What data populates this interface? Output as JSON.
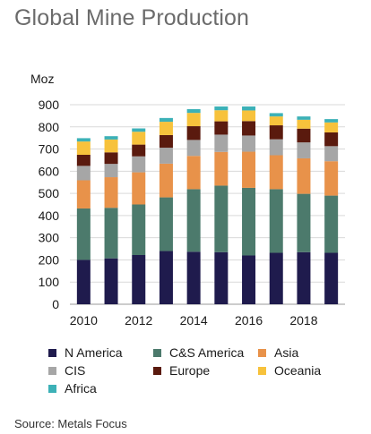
{
  "chart_data": {
    "type": "stacked-bar",
    "title": "Global Mine Production",
    "ylabel": "Moz",
    "ylim": [
      0,
      900
    ],
    "yticks": [
      0,
      100,
      200,
      300,
      400,
      500,
      600,
      700,
      800,
      900
    ],
    "categories": [
      "2010",
      "2011",
      "2012",
      "2013",
      "2014",
      "2015",
      "2016",
      "2017",
      "2018",
      "2019"
    ],
    "xtick_labels": [
      "2010",
      "2012",
      "2014",
      "2016",
      "2018"
    ],
    "grid": true,
    "legend_position": "bottom",
    "series": [
      {
        "name": "N America",
        "color": "#1f1b4d",
        "values": [
          200,
          207,
          222,
          240,
          237,
          235,
          220,
          232,
          235,
          232
        ]
      },
      {
        "name": "C&S America",
        "color": "#4c7a6c",
        "values": [
          232,
          228,
          228,
          242,
          282,
          300,
          305,
          287,
          263,
          258
        ]
      },
      {
        "name": "Asia",
        "color": "#e8924a",
        "values": [
          127,
          138,
          145,
          152,
          150,
          152,
          163,
          153,
          160,
          155
        ]
      },
      {
        "name": "CIS",
        "color": "#a6a6a6",
        "values": [
          65,
          60,
          72,
          72,
          72,
          78,
          73,
          72,
          72,
          68
        ]
      },
      {
        "name": "Europe",
        "color": "#5a1a0e",
        "values": [
          50,
          52,
          53,
          57,
          62,
          60,
          65,
          63,
          62,
          62
        ]
      },
      {
        "name": "Oceania",
        "color": "#f7c23c",
        "values": [
          60,
          58,
          58,
          60,
          60,
          50,
          48,
          40,
          40,
          45
        ]
      },
      {
        "name": "Africa",
        "color": "#3cb1b7",
        "values": [
          15,
          15,
          15,
          17,
          17,
          17,
          18,
          15,
          15,
          15
        ]
      }
    ]
  },
  "source": "Source: Metals Focus"
}
